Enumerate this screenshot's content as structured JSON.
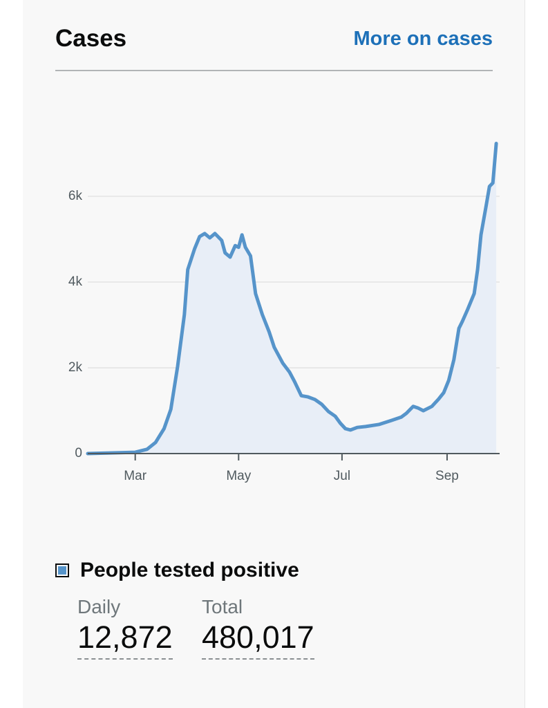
{
  "header": {
    "title": "Cases",
    "link": "More on cases"
  },
  "chart_data": {
    "type": "line",
    "x": [
      -28,
      0,
      7,
      12,
      17,
      21,
      25,
      29,
      31,
      35,
      38,
      41,
      44,
      47,
      51,
      53,
      56,
      59,
      61,
      63,
      65,
      68,
      71,
      75,
      79,
      82,
      87,
      91,
      94,
      98,
      102,
      106,
      110,
      114,
      118,
      121,
      124,
      127,
      131,
      136,
      144,
      151,
      157,
      160,
      164,
      167,
      170,
      175,
      179,
      182,
      185,
      188,
      191,
      193,
      196,
      200,
      202,
      204,
      207,
      209,
      211,
      213
    ],
    "series": [
      {
        "name": "People tested positive",
        "color": "#5694ca",
        "values": [
          0,
          30,
          100,
          260,
          580,
          1030,
          2030,
          3240,
          4290,
          4770,
          5060,
          5130,
          5030,
          5130,
          4970,
          4680,
          4580,
          4850,
          4810,
          5100,
          4810,
          4610,
          3730,
          3240,
          2840,
          2480,
          2110,
          1900,
          1680,
          1350,
          1320,
          1260,
          1150,
          980,
          870,
          710,
          580,
          550,
          610,
          630,
          680,
          770,
          850,
          940,
          1100,
          1060,
          1000,
          1100,
          1270,
          1420,
          1710,
          2190,
          2920,
          3080,
          3350,
          3730,
          4290,
          5100,
          5770,
          6230,
          6310,
          7230
        ]
      }
    ],
    "xlim": [
      -28,
      215
    ],
    "xticks": [
      {
        "value": 0,
        "label": "Mar"
      },
      {
        "value": 61,
        "label": "May"
      },
      {
        "value": 122,
        "label": "Jul"
      },
      {
        "value": 184,
        "label": "Sep"
      }
    ],
    "ylim": [
      0,
      7400
    ],
    "yticks": [
      0,
      {
        "value": 2000,
        "label": "2k"
      },
      {
        "value": 4000,
        "label": "4k"
      },
      {
        "value": 6000,
        "label": "6k"
      }
    ],
    "grid": true,
    "fill": "#e8eef7"
  },
  "summary": {
    "metrics": [
      {
        "label": "Daily",
        "value": "12,872"
      },
      {
        "label": "Total",
        "value": "480,017"
      }
    ]
  }
}
